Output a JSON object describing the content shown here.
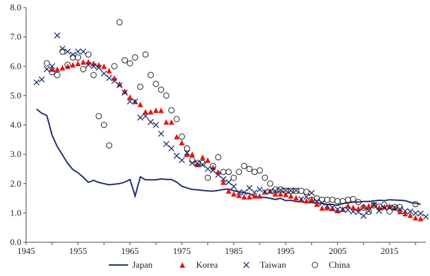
{
  "chart_data": {
    "type": "line",
    "title": "",
    "xlabel": "",
    "ylabel": "",
    "xlim": [
      1945,
      2022
    ],
    "ylim": [
      0,
      8
    ],
    "x_ticks": [
      1945,
      1955,
      1965,
      1975,
      1985,
      1995,
      2005,
      2015
    ],
    "y_ticks": [
      0.0,
      1.0,
      2.0,
      3.0,
      4.0,
      5.0,
      6.0,
      7.0,
      8.0
    ],
    "y_tick_labels": [
      "0.0",
      "1.0",
      "2.0",
      "3.0",
      "4.0",
      "5.0",
      "6.0",
      "7.0",
      "8.0"
    ],
    "grid": false,
    "legend_position": "bottom",
    "series": [
      {
        "name": "Japan",
        "marker": "line",
        "color": "#1f2f6b",
        "points": [
          [
            1947,
            4.54
          ],
          [
            1948,
            4.4
          ],
          [
            1949,
            4.32
          ],
          [
            1950,
            3.65
          ],
          [
            1951,
            3.26
          ],
          [
            1952,
            2.98
          ],
          [
            1953,
            2.69
          ],
          [
            1954,
            2.48
          ],
          [
            1955,
            2.37
          ],
          [
            1956,
            2.22
          ],
          [
            1957,
            2.04
          ],
          [
            1958,
            2.11
          ],
          [
            1959,
            2.04
          ],
          [
            1960,
            2.0
          ],
          [
            1961,
            1.96
          ],
          [
            1962,
            1.98
          ],
          [
            1963,
            2.0
          ],
          [
            1964,
            2.05
          ],
          [
            1965,
            2.14
          ],
          [
            1966,
            1.58
          ],
          [
            1967,
            2.23
          ],
          [
            1968,
            2.13
          ],
          [
            1969,
            2.13
          ],
          [
            1970,
            2.13
          ],
          [
            1971,
            2.16
          ],
          [
            1972,
            2.14
          ],
          [
            1973,
            2.14
          ],
          [
            1974,
            2.05
          ],
          [
            1975,
            1.91
          ],
          [
            1976,
            1.85
          ],
          [
            1977,
            1.8
          ],
          [
            1978,
            1.79
          ],
          [
            1979,
            1.77
          ],
          [
            1980,
            1.75
          ],
          [
            1981,
            1.74
          ],
          [
            1982,
            1.77
          ],
          [
            1983,
            1.8
          ],
          [
            1984,
            1.81
          ],
          [
            1985,
            1.76
          ],
          [
            1986,
            1.72
          ],
          [
            1987,
            1.69
          ],
          [
            1988,
            1.66
          ],
          [
            1989,
            1.57
          ],
          [
            1990,
            1.54
          ],
          [
            1991,
            1.53
          ],
          [
            1992,
            1.5
          ],
          [
            1993,
            1.46
          ],
          [
            1994,
            1.5
          ],
          [
            1995,
            1.42
          ],
          [
            1996,
            1.43
          ],
          [
            1997,
            1.39
          ],
          [
            1998,
            1.38
          ],
          [
            1999,
            1.34
          ],
          [
            2000,
            1.36
          ],
          [
            2001,
            1.33
          ],
          [
            2002,
            1.32
          ],
          [
            2003,
            1.29
          ],
          [
            2004,
            1.29
          ],
          [
            2005,
            1.26
          ],
          [
            2006,
            1.32
          ],
          [
            2007,
            1.34
          ],
          [
            2008,
            1.37
          ],
          [
            2009,
            1.37
          ],
          [
            2010,
            1.39
          ],
          [
            2011,
            1.39
          ],
          [
            2012,
            1.41
          ],
          [
            2013,
            1.43
          ],
          [
            2014,
            1.42
          ],
          [
            2015,
            1.45
          ],
          [
            2016,
            1.44
          ],
          [
            2017,
            1.43
          ],
          [
            2018,
            1.42
          ],
          [
            2019,
            1.36
          ],
          [
            2020,
            1.33
          ],
          [
            2021,
            1.3
          ]
        ]
      },
      {
        "name": "Korea",
        "marker": "triangle",
        "color": "#e8130f",
        "points": [
          [
            1950,
            5.9
          ],
          [
            1951,
            5.9
          ],
          [
            1952,
            5.95
          ],
          [
            1953,
            6.0
          ],
          [
            1954,
            6.05
          ],
          [
            1955,
            6.1
          ],
          [
            1956,
            6.15
          ],
          [
            1957,
            6.15
          ],
          [
            1958,
            6.1
          ],
          [
            1959,
            6.05
          ],
          [
            1960,
            6.0
          ],
          [
            1961,
            5.85
          ],
          [
            1962,
            5.6
          ],
          [
            1963,
            5.4
          ],
          [
            1964,
            5.15
          ],
          [
            1965,
            4.95
          ],
          [
            1966,
            4.8
          ],
          [
            1967,
            4.7
          ],
          [
            1968,
            4.45
          ],
          [
            1969,
            4.45
          ],
          [
            1970,
            4.5
          ],
          [
            1971,
            4.5
          ],
          [
            1972,
            4.1
          ],
          [
            1973,
            4.1
          ],
          [
            1974,
            3.6
          ],
          [
            1975,
            3.4
          ],
          [
            1976,
            3.0
          ],
          [
            1977,
            3.0
          ],
          [
            1978,
            2.65
          ],
          [
            1979,
            2.9
          ],
          [
            1980,
            2.8
          ],
          [
            1981,
            2.55
          ],
          [
            1982,
            2.4
          ],
          [
            1983,
            2.05
          ],
          [
            1984,
            1.75
          ],
          [
            1985,
            1.65
          ],
          [
            1986,
            1.6
          ],
          [
            1987,
            1.55
          ],
          [
            1988,
            1.55
          ],
          [
            1989,
            1.58
          ],
          [
            1990,
            1.58
          ],
          [
            1991,
            1.72
          ],
          [
            1992,
            1.75
          ],
          [
            1993,
            1.65
          ],
          [
            1994,
            1.65
          ],
          [
            1995,
            1.63
          ],
          [
            1996,
            1.58
          ],
          [
            1997,
            1.52
          ],
          [
            1998,
            1.45
          ],
          [
            1999,
            1.42
          ],
          [
            2000,
            1.47
          ],
          [
            2001,
            1.3
          ],
          [
            2002,
            1.17
          ],
          [
            2003,
            1.18
          ],
          [
            2004,
            1.15
          ],
          [
            2005,
            1.08
          ],
          [
            2006,
            1.13
          ],
          [
            2007,
            1.25
          ],
          [
            2008,
            1.19
          ],
          [
            2009,
            1.15
          ],
          [
            2010,
            1.23
          ],
          [
            2011,
            1.24
          ],
          [
            2012,
            1.3
          ],
          [
            2013,
            1.19
          ],
          [
            2014,
            1.21
          ],
          [
            2015,
            1.24
          ],
          [
            2016,
            1.17
          ],
          [
            2017,
            1.05
          ],
          [
            2018,
            0.98
          ],
          [
            2019,
            0.92
          ],
          [
            2020,
            0.84
          ],
          [
            2021,
            0.81
          ]
        ]
      },
      {
        "name": "Taiwan",
        "marker": "x",
        "color": "#1f2f6b",
        "points": [
          [
            1947,
            5.45
          ],
          [
            1948,
            5.55
          ],
          [
            1949,
            5.9
          ],
          [
            1950,
            6.0
          ],
          [
            1951,
            7.05
          ],
          [
            1952,
            6.6
          ],
          [
            1953,
            6.5
          ],
          [
            1954,
            6.4
          ],
          [
            1955,
            6.5
          ],
          [
            1956,
            6.5
          ],
          [
            1957,
            6.05
          ],
          [
            1958,
            6.0
          ],
          [
            1959,
            5.95
          ],
          [
            1960,
            5.75
          ],
          [
            1961,
            5.6
          ],
          [
            1962,
            5.5
          ],
          [
            1963,
            5.35
          ],
          [
            1964,
            5.1
          ],
          [
            1965,
            4.8
          ],
          [
            1966,
            4.8
          ],
          [
            1967,
            4.25
          ],
          [
            1968,
            4.3
          ],
          [
            1969,
            4.1
          ],
          [
            1970,
            4.0
          ],
          [
            1971,
            3.7
          ],
          [
            1972,
            3.35
          ],
          [
            1973,
            3.2
          ],
          [
            1974,
            2.95
          ],
          [
            1975,
            2.8
          ],
          [
            1976,
            3.05
          ],
          [
            1977,
            2.7
          ],
          [
            1978,
            2.7
          ],
          [
            1979,
            2.65
          ],
          [
            1980,
            2.5
          ],
          [
            1981,
            2.45
          ],
          [
            1982,
            2.3
          ],
          [
            1983,
            2.15
          ],
          [
            1984,
            2.05
          ],
          [
            1985,
            1.9
          ],
          [
            1986,
            1.7
          ],
          [
            1987,
            1.7
          ],
          [
            1988,
            1.85
          ],
          [
            1989,
            1.7
          ],
          [
            1990,
            1.8
          ],
          [
            1991,
            1.72
          ],
          [
            1992,
            1.73
          ],
          [
            1993,
            1.75
          ],
          [
            1994,
            1.78
          ],
          [
            1995,
            1.77
          ],
          [
            1996,
            1.76
          ],
          [
            1997,
            1.77
          ],
          [
            1998,
            1.47
          ],
          [
            1999,
            1.55
          ],
          [
            2000,
            1.68
          ],
          [
            2001,
            1.4
          ],
          [
            2002,
            1.34
          ],
          [
            2003,
            1.24
          ],
          [
            2004,
            1.18
          ],
          [
            2005,
            1.12
          ],
          [
            2006,
            1.12
          ],
          [
            2007,
            1.1
          ],
          [
            2008,
            1.05
          ],
          [
            2009,
            1.03
          ],
          [
            2010,
            0.9
          ],
          [
            2011,
            1.07
          ],
          [
            2012,
            1.27
          ],
          [
            2013,
            1.07
          ],
          [
            2014,
            1.17
          ],
          [
            2015,
            1.18
          ],
          [
            2016,
            1.17
          ],
          [
            2017,
            1.13
          ],
          [
            2018,
            1.06
          ],
          [
            2019,
            1.05
          ],
          [
            2020,
            0.99
          ],
          [
            2021,
            0.98
          ],
          [
            2022,
            0.87
          ]
        ]
      },
      {
        "name": "China",
        "marker": "circle",
        "color": "#222222",
        "points": [
          [
            1949,
            6.1
          ],
          [
            1950,
            5.8
          ],
          [
            1951,
            5.7
          ],
          [
            1952,
            6.5
          ],
          [
            1953,
            6.05
          ],
          [
            1954,
            6.3
          ],
          [
            1955,
            6.3
          ],
          [
            1956,
            5.9
          ],
          [
            1957,
            6.4
          ],
          [
            1958,
            5.7
          ],
          [
            1959,
            4.3
          ],
          [
            1960,
            4.0
          ],
          [
            1961,
            3.3
          ],
          [
            1962,
            6.0
          ],
          [
            1963,
            7.5
          ],
          [
            1964,
            6.2
          ],
          [
            1965,
            6.1
          ],
          [
            1966,
            6.3
          ],
          [
            1967,
            5.3
          ],
          [
            1968,
            6.4
          ],
          [
            1969,
            5.7
          ],
          [
            1970,
            5.4
          ],
          [
            1971,
            5.2
          ],
          [
            1972,
            5.0
          ],
          [
            1973,
            4.5
          ],
          [
            1974,
            4.2
          ],
          [
            1975,
            3.6
          ],
          [
            1976,
            3.2
          ],
          [
            1977,
            2.8
          ],
          [
            1978,
            2.7
          ],
          [
            1979,
            2.7
          ],
          [
            1980,
            2.2
          ],
          [
            1981,
            2.6
          ],
          [
            1982,
            2.9
          ],
          [
            1983,
            2.4
          ],
          [
            1984,
            2.4
          ],
          [
            1985,
            2.2
          ],
          [
            1986,
            2.4
          ],
          [
            1987,
            2.6
          ],
          [
            1988,
            2.5
          ],
          [
            1989,
            2.4
          ],
          [
            1990,
            2.45
          ],
          [
            1991,
            2.2
          ],
          [
            1992,
            2.0
          ],
          [
            1993,
            1.8
          ],
          [
            1994,
            1.8
          ],
          [
            1995,
            1.75
          ],
          [
            1996,
            1.75
          ],
          [
            1997,
            1.75
          ],
          [
            1998,
            1.75
          ],
          [
            1999,
            1.72
          ],
          [
            2000,
            1.45
          ],
          [
            2001,
            1.5
          ],
          [
            2002,
            1.45
          ],
          [
            2003,
            1.45
          ],
          [
            2004,
            1.45
          ],
          [
            2005,
            1.4
          ],
          [
            2006,
            1.4
          ],
          [
            2007,
            1.45
          ],
          [
            2008,
            1.47
          ],
          [
            2009,
            1.37
          ],
          [
            2010,
            1.18
          ],
          [
            2011,
            1.04
          ],
          [
            2012,
            1.26
          ],
          [
            2013,
            1.22
          ],
          [
            2014,
            1.28
          ],
          [
            2015,
            1.05
          ],
          [
            2016,
            1.2
          ],
          [
            2017,
            1.2
          ],
          [
            2020,
            1.3
          ]
        ]
      }
    ]
  }
}
